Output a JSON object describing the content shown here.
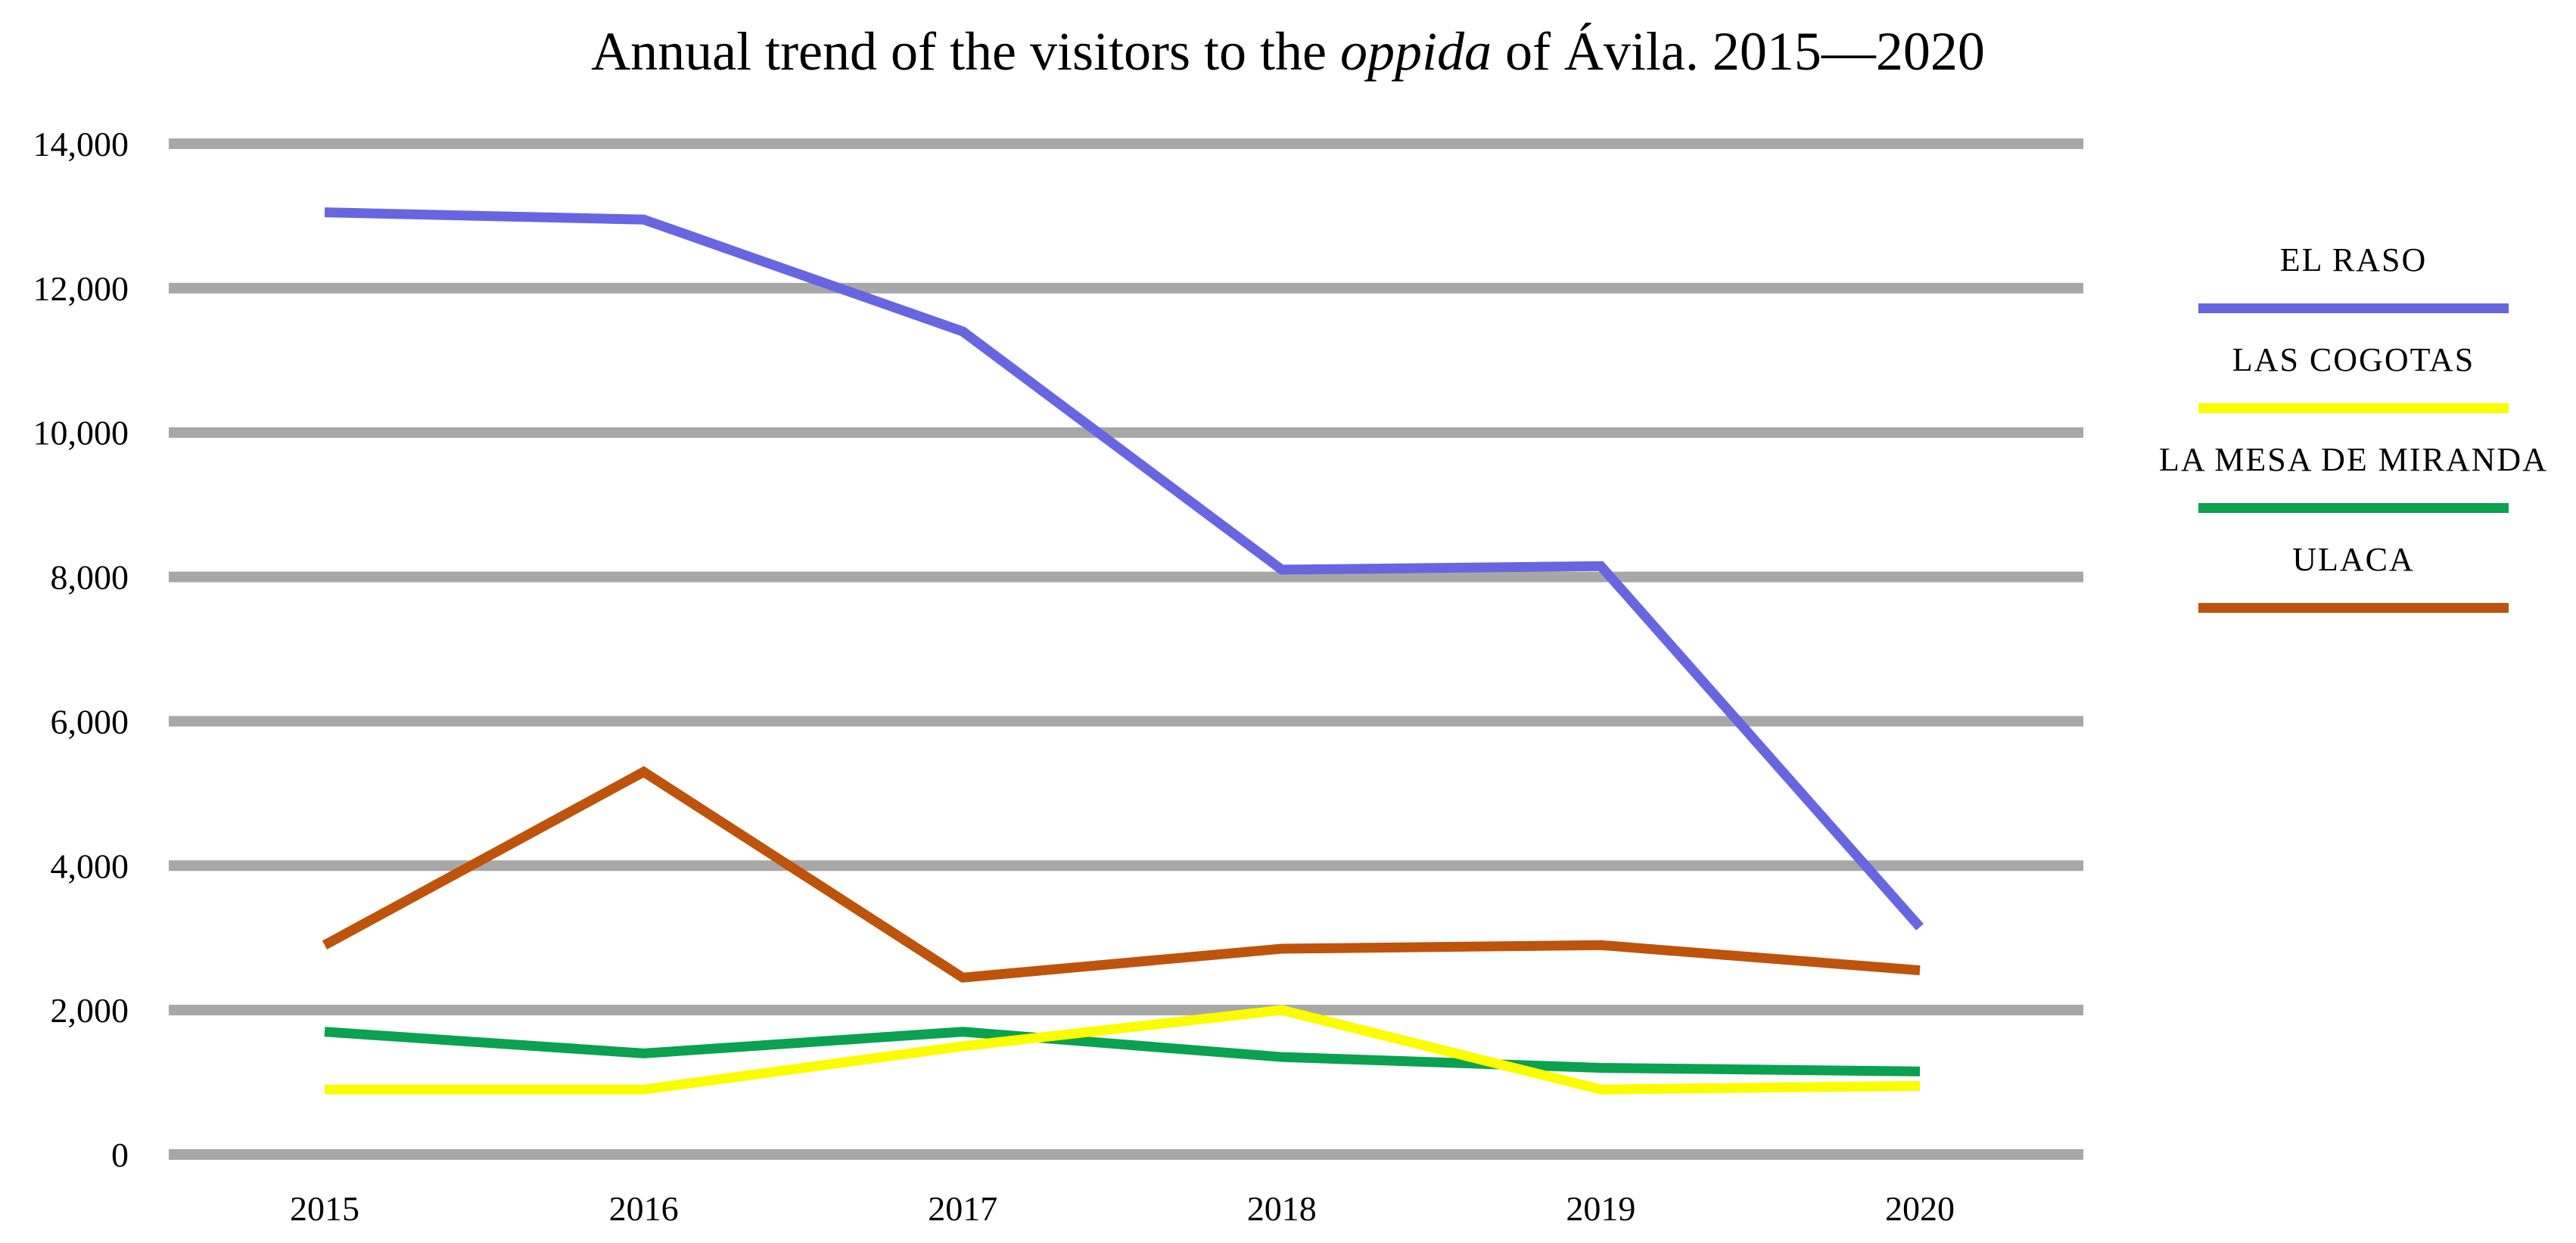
{
  "title": {
    "text": "Annual trend of the visitors to the oppida of Ávila. 2015—2020",
    "prefix": "Annual trend of the visitors to the ",
    "italic": "oppida",
    "suffix": " of Ávila. 2015—2020"
  },
  "colors": {
    "el_raso": "#6865E1",
    "las_cogotas": "#FCFC00",
    "la_mesa_de_miranda": "#0AA150",
    "ulaca": "#BE530C",
    "gridline": "#A7A7A7",
    "text": "#000000",
    "background": "#FFFFFF"
  },
  "legend": {
    "items": [
      {
        "label": "EL RASO",
        "color": "#6865E1"
      },
      {
        "label": "LAS COGOTAS",
        "color": "#FCFC00"
      },
      {
        "label": "LA MESA DE MIRANDA",
        "color": "#0AA150"
      },
      {
        "label": "ULACA",
        "color": "#BE530C"
      }
    ]
  },
  "chart_data": {
    "type": "line",
    "title": "Annual trend of the visitors to the oppida of Ávila. 2015—2020",
    "x": [
      "2015",
      "2016",
      "2017",
      "2018",
      "2019",
      "2020"
    ],
    "series": [
      {
        "name": "EL RASO",
        "color": "#6865E1",
        "values": [
          13050,
          12950,
          11400,
          8100,
          8150,
          3150
        ]
      },
      {
        "name": "LAS COGOTAS",
        "color": "#FCFC00",
        "values": [
          900,
          900,
          1500,
          2000,
          900,
          950
        ]
      },
      {
        "name": "LA MESA DE MIRANDA",
        "color": "#0AA150",
        "values": [
          1700,
          1400,
          1700,
          1350,
          1200,
          1150
        ]
      },
      {
        "name": "ULACA",
        "color": "#BE530C",
        "values": [
          2900,
          5300,
          2450,
          2850,
          2900,
          2550
        ]
      }
    ],
    "xlabel": "",
    "ylabel": "",
    "ylim": [
      0,
      14000
    ],
    "y_tick_step": 2000,
    "y_ticks": [
      {
        "value": 0,
        "label": "0"
      },
      {
        "value": 2000,
        "label": "2,000"
      },
      {
        "value": 4000,
        "label": "4,000"
      },
      {
        "value": 6000,
        "label": "6,000"
      },
      {
        "value": 8000,
        "label": "8,000"
      },
      {
        "value": 10000,
        "label": "10,000"
      },
      {
        "value": 12000,
        "label": "12,000"
      },
      {
        "value": 14000,
        "label": "14,000"
      }
    ],
    "grid": "horizontal",
    "legend_position": "right"
  }
}
